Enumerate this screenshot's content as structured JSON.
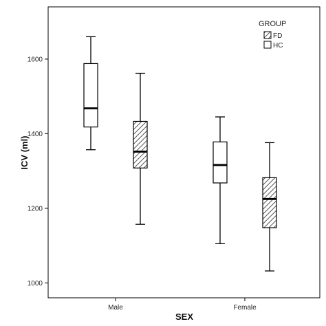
{
  "chart_data": {
    "type": "boxplot",
    "xlabel": "SEX",
    "ylabel": "ICV (ml)",
    "ylim": [
      960,
      1740
    ],
    "yticks": [
      1000,
      1200,
      1400,
      1600
    ],
    "categories": [
      "Male",
      "Female"
    ],
    "legend": {
      "title": "GROUP",
      "position": "top-right",
      "entries": [
        "FD",
        "HC"
      ]
    },
    "series": [
      {
        "name": "HC",
        "fill": "plain",
        "boxes": [
          {
            "category": "Male",
            "min": 1357,
            "q1": 1418,
            "median": 1468,
            "q3": 1588,
            "max": 1660
          },
          {
            "category": "Female",
            "min": 1105,
            "q1": 1268,
            "median": 1316,
            "q3": 1378,
            "max": 1445
          }
        ]
      },
      {
        "name": "FD",
        "fill": "hatched",
        "boxes": [
          {
            "category": "Male",
            "min": 1157,
            "q1": 1308,
            "median": 1352,
            "q3": 1433,
            "max": 1562
          },
          {
            "category": "Female",
            "min": 1032,
            "q1": 1148,
            "median": 1225,
            "q3": 1282,
            "max": 1376
          }
        ]
      }
    ],
    "grid": false,
    "colors": {
      "line": "#000000",
      "box_fill": "#ffffff",
      "hatch": "#555555"
    }
  }
}
